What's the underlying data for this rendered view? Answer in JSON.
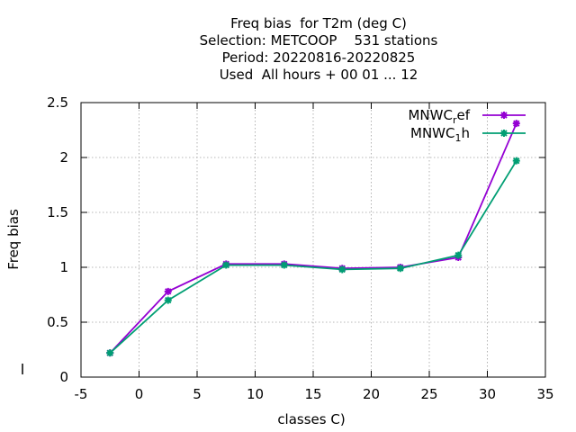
{
  "chart_data": {
    "type": "line",
    "title_lines": [
      "Freq bias  for T2m (deg C)",
      "Selection: METCOOP    531 stations",
      "Period: 20220816-20220825",
      "Used  All hours + 00 01 ... 12"
    ],
    "xlabel": "classes C)",
    "ylabel": "Freq bias",
    "xlim": [
      -5,
      35
    ],
    "ylim": [
      0,
      2.5
    ],
    "xticks": [
      -5,
      0,
      5,
      10,
      15,
      20,
      25,
      30,
      35
    ],
    "xtick_labels": [
      "-5",
      "0",
      "5",
      "10",
      "15",
      "20",
      "25",
      "30",
      "35"
    ],
    "yticks": [
      0,
      0.5,
      1,
      1.5,
      2,
      2.5
    ],
    "ytick_labels": [
      "0",
      "0.5",
      "1",
      "1.5",
      "2",
      "2.5"
    ],
    "grid": true,
    "legend_position": "top-right",
    "x": [
      -2.5,
      2.5,
      7.5,
      12.5,
      17.5,
      22.5,
      27.5,
      32.5
    ],
    "series": [
      {
        "name": "MNWC",
        "subscript": "r",
        "name_suffix": "ef",
        "color": "#9400d3",
        "values": [
          0.22,
          0.78,
          1.03,
          1.03,
          0.99,
          1.0,
          1.09,
          2.31
        ]
      },
      {
        "name": "MNWC",
        "subscript": "1",
        "name_suffix": "h",
        "color": "#009e73",
        "values": [
          0.22,
          0.7,
          1.02,
          1.02,
          0.98,
          0.99,
          1.11,
          1.97
        ]
      }
    ]
  }
}
